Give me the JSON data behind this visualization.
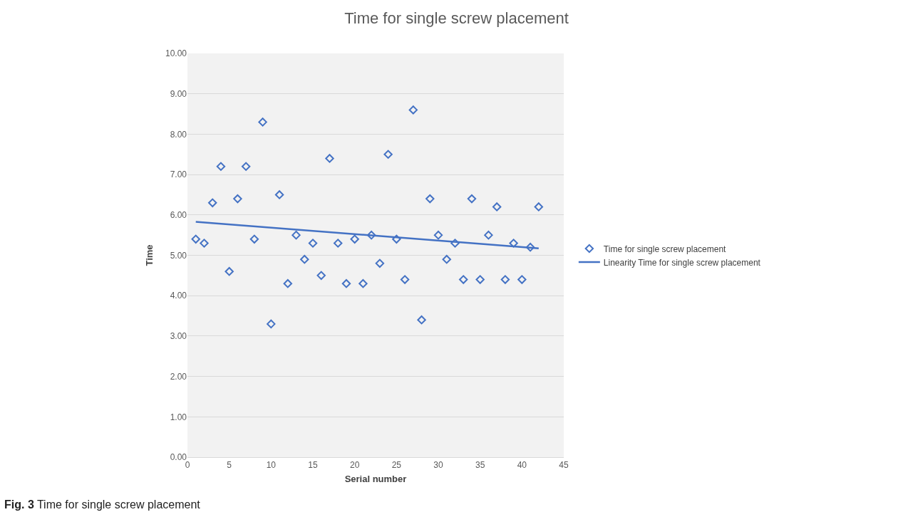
{
  "chart_data": {
    "type": "scatter",
    "title": "Time for single screw placement",
    "xlabel": "Serial number",
    "ylabel": "Time",
    "x": [
      1,
      2,
      3,
      4,
      5,
      6,
      7,
      8,
      9,
      10,
      11,
      12,
      13,
      14,
      15,
      16,
      17,
      18,
      19,
      20,
      21,
      22,
      23,
      24,
      25,
      26,
      27,
      28,
      29,
      30,
      31,
      32,
      33,
      34,
      35,
      36,
      37,
      38,
      39,
      40,
      41,
      42
    ],
    "series": [
      {
        "name": "Time for single screw placement",
        "color": "#4472c4",
        "marker": "diamond",
        "values": [
          5.4,
          5.3,
          6.3,
          7.2,
          4.6,
          6.4,
          7.2,
          5.4,
          8.3,
          3.3,
          6.5,
          4.3,
          5.5,
          4.9,
          5.3,
          4.5,
          7.4,
          5.3,
          4.3,
          5.4,
          4.3,
          5.5,
          4.8,
          7.5,
          5.4,
          4.4,
          8.6,
          3.4,
          6.4,
          5.5,
          4.9,
          5.3,
          4.4,
          6.4,
          4.4,
          5.5,
          6.2,
          4.4,
          5.3,
          4.4,
          5.2,
          6.2
        ]
      },
      {
        "name": "Linearity Time for single screw placement",
        "type": "line",
        "color": "#4472c4",
        "marker": "none",
        "x": [
          1,
          42
        ],
        "values": [
          5.83,
          5.17
        ]
      }
    ],
    "xlim": [
      0,
      45
    ],
    "xticks": [
      0,
      5,
      10,
      15,
      20,
      25,
      30,
      35,
      40,
      45
    ],
    "ylim": [
      0,
      10
    ],
    "yticks": [
      {
        "value": 0,
        "label": "0.00"
      },
      {
        "value": 1,
        "label": "1.00"
      },
      {
        "value": 2,
        "label": "2.00"
      },
      {
        "value": 3,
        "label": "3.00"
      },
      {
        "value": 4,
        "label": "4.00"
      },
      {
        "value": 5,
        "label": "5.00"
      },
      {
        "value": 6,
        "label": "6.00"
      },
      {
        "value": 7,
        "label": "7.00"
      },
      {
        "value": 8,
        "label": "8.00"
      },
      {
        "value": 9,
        "label": "9.00"
      },
      {
        "value": 10,
        "label": "10.00"
      }
    ],
    "grid": "y",
    "legend": "right",
    "line_style": "solid",
    "annotations": [
      "Fig. 3 Time for single screw placement"
    ]
  }
}
